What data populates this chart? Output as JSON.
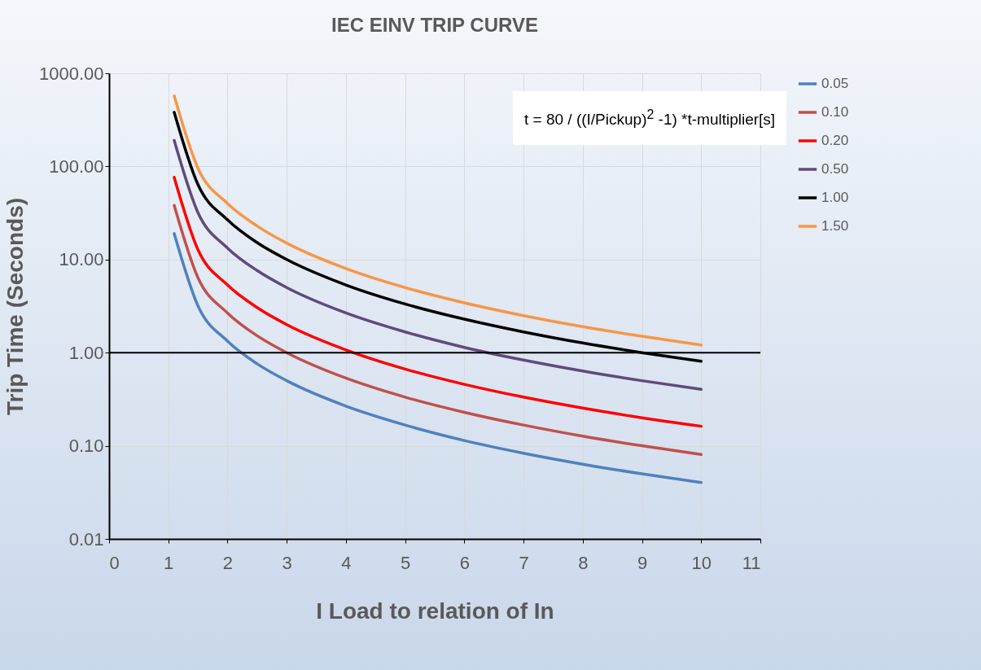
{
  "chart_data": {
    "type": "line",
    "title": "IEC EINV TRIP CURVE",
    "xlabel": "I Load to relation of In",
    "ylabel": "Trip Time (Seconds)",
    "x": [
      1.1,
      1.5,
      2,
      2.5,
      3,
      4,
      5,
      6,
      7,
      8,
      9,
      10
    ],
    "series": [
      {
        "name": "0.05",
        "color": "#4f81bd",
        "values": [
          19.0,
          3.2,
          1.33,
          0.76,
          0.5,
          0.267,
          0.167,
          0.114,
          0.0833,
          0.0635,
          0.05,
          0.0404
        ]
      },
      {
        "name": "0.10",
        "color": "#c0504d",
        "values": [
          38.1,
          6.4,
          2.67,
          1.52,
          1.0,
          0.533,
          0.333,
          0.229,
          0.167,
          0.127,
          0.1,
          0.0808
        ]
      },
      {
        "name": "0.20",
        "color": "#ff0000",
        "values": [
          76.2,
          12.8,
          5.33,
          3.05,
          2.0,
          1.07,
          0.667,
          0.457,
          0.333,
          0.254,
          0.2,
          0.162
        ]
      },
      {
        "name": "0.50",
        "color": "#604a7b",
        "values": [
          190,
          32,
          13.3,
          7.62,
          5.0,
          2.67,
          1.67,
          1.14,
          0.833,
          0.635,
          0.5,
          0.404
        ]
      },
      {
        "name": "1.00",
        "color": "#000000",
        "values": [
          381,
          64,
          26.7,
          15.2,
          10,
          5.33,
          3.33,
          2.29,
          1.67,
          1.27,
          1.0,
          0.808
        ]
      },
      {
        "name": "1.50",
        "color": "#f79646",
        "values": [
          571,
          96,
          40,
          22.9,
          15,
          8,
          5,
          3.43,
          2.5,
          1.9,
          1.5,
          1.21
        ]
      }
    ],
    "log": "y",
    "xlim": [
      0,
      11
    ],
    "xticks": [
      0,
      1,
      2,
      3,
      4,
      5,
      6,
      7,
      8,
      9,
      10,
      11
    ],
    "ylim": [
      0.01,
      1000
    ],
    "yticks": [
      {
        "value": 0.01,
        "label": "0.01"
      },
      {
        "value": 0.1,
        "label": "0.10"
      },
      {
        "value": 1,
        "label": "1.00"
      },
      {
        "value": 10,
        "label": "10.00"
      },
      {
        "value": 100,
        "label": "100.00"
      },
      {
        "value": 1000,
        "label": "1000.00"
      }
    ],
    "grid": true,
    "legend": "right",
    "marker": "none",
    "line_style": "solid",
    "ref_lines": [
      {
        "axis": "y",
        "value": 1,
        "color": "#000000"
      }
    ],
    "annotations": [
      "t = 80 / ((I/Pickup)$^{2}$ -1) *t-multiplier[s]"
    ]
  }
}
